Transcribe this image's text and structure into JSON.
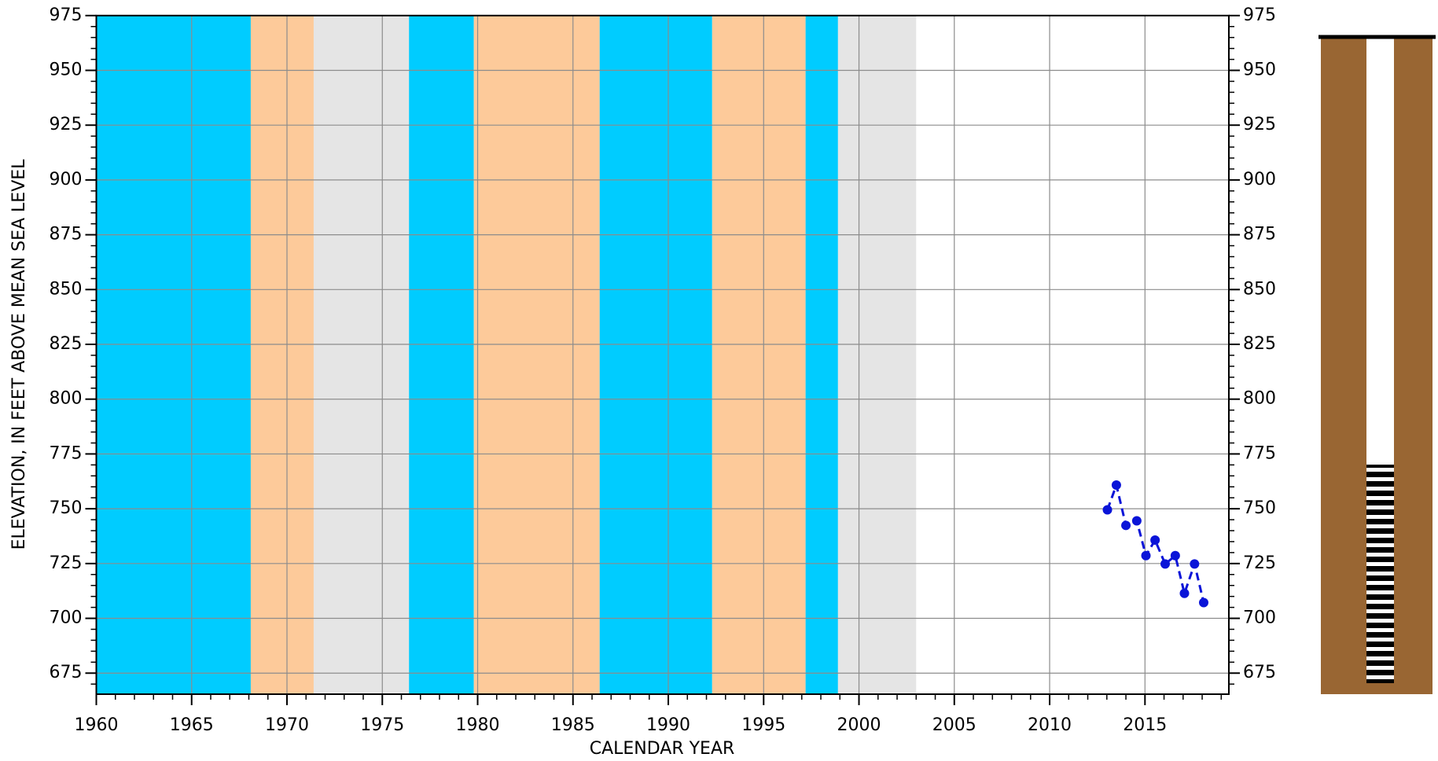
{
  "chart_data": {
    "type": "line",
    "x_label": "CALENDAR YEAR",
    "y_label": "ELEVATION, IN FEET ABOVE MEAN SEA LEVEL",
    "x": [
      2013.03,
      2013.5,
      2014.0,
      2014.57,
      2015.05,
      2015.53,
      2016.06,
      2016.59,
      2017.07,
      2017.6,
      2018.08
    ],
    "series": [
      {
        "color": "#0a14d8",
        "values": [
          749.5,
          760.8,
          742.4,
          744.5,
          728.6,
          735.7,
          724.8,
          728.6,
          711.4,
          724.8,
          707.2
        ]
      }
    ],
    "bands": [
      {
        "start": 1960,
        "end": 1968.1,
        "color": "#00ccff"
      },
      {
        "start": 1968.1,
        "end": 1971.4,
        "color": "#fdca9a"
      },
      {
        "start": 1971.4,
        "end": 1976.4,
        "color": "#e5e5e5"
      },
      {
        "start": 1976.4,
        "end": 1979.8,
        "color": "#00ccff"
      },
      {
        "start": 1979.8,
        "end": 1986.4,
        "color": "#fdca9a"
      },
      {
        "start": 1986.4,
        "end": 1992.3,
        "color": "#00ccff"
      },
      {
        "start": 1992.3,
        "end": 1997.2,
        "color": "#fdca9a"
      },
      {
        "start": 1997.2,
        "end": 1998.9,
        "color": "#00ccff"
      },
      {
        "start": 1998.9,
        "end": 2003.0,
        "color": "#e5e5e5"
      }
    ],
    "xlim": [
      1960,
      2019.4
    ],
    "xticks": [
      1960,
      1965,
      1970,
      1975,
      1980,
      1985,
      1990,
      1995,
      2000,
      2005,
      2010,
      2015
    ],
    "ylim": [
      665.4,
      975
    ],
    "yticks": [
      675,
      700,
      725,
      750,
      775,
      800,
      825,
      850,
      875,
      900,
      925,
      950,
      975
    ],
    "y2lim": [
      665.4,
      975
    ],
    "y2ticks": [
      675,
      700,
      725,
      750,
      775,
      800,
      825,
      850,
      875,
      900,
      925,
      950,
      975
    ],
    "grid": true,
    "line_style": "dashed"
  }
}
